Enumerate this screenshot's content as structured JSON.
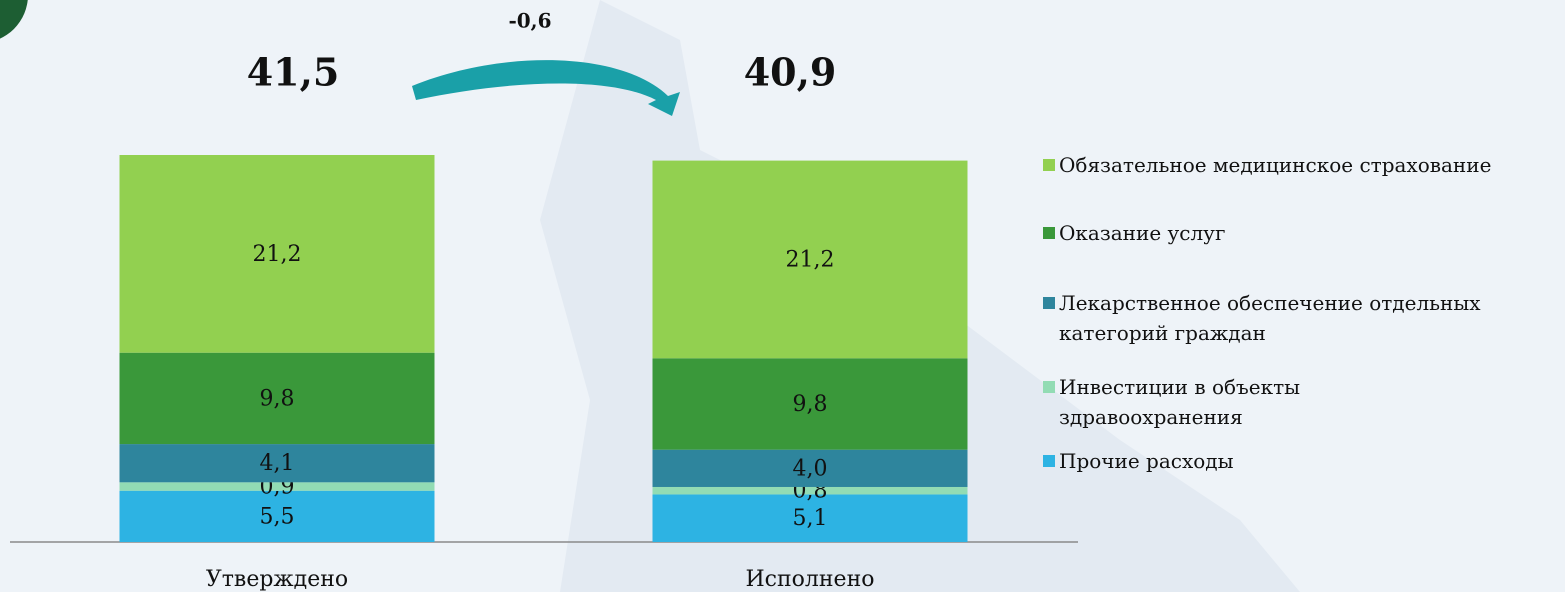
{
  "chart_data": {
    "type": "stacked_bar",
    "categories": [
      "Утверждено",
      "Исполнено"
    ],
    "series": [
      {
        "name": "Прочие расходы",
        "color": "#2db3e3",
        "values": [
          5.5,
          5.1
        ],
        "value_labels": [
          "5,5",
          "5,1"
        ]
      },
      {
        "name": "Инвестиции в объекты здравоохранения",
        "color": "#92dcb4",
        "values": [
          0.9,
          0.8
        ],
        "value_labels": [
          "0,9",
          "0,8"
        ]
      },
      {
        "name": "Лекарственное обеспечение отдельных категорий граждан",
        "color": "#2e859d",
        "values": [
          4.1,
          4.0
        ],
        "value_labels": [
          "4,1",
          "4,0"
        ]
      },
      {
        "name": "Оказание услуг",
        "color": "#3a983a",
        "values": [
          9.8,
          9.8
        ],
        "value_labels": [
          "9,8",
          "9,8"
        ]
      },
      {
        "name": "Обязательное медицинское страхование",
        "color": "#92d050",
        "values": [
          21.2,
          21.2
        ],
        "value_labels": [
          "21,2",
          "21,2"
        ]
      }
    ],
    "totals": [
      41.5,
      40.9
    ],
    "total_labels": [
      "41,5",
      "40,9"
    ],
    "annotation": "-0,6"
  }
}
